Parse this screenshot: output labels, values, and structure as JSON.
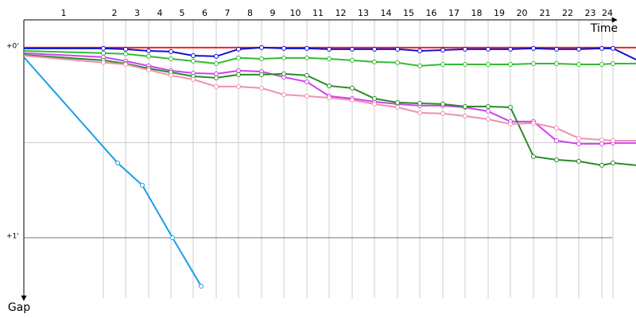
{
  "chart_data": {
    "type": "line",
    "laps": [
      "1",
      "2",
      "3",
      "4",
      "5",
      "6",
      "7",
      "8",
      "9",
      "10",
      "11",
      "12",
      "13",
      "14",
      "15",
      "16",
      "17",
      "18",
      "19",
      "20",
      "21",
      "22",
      "23",
      "24"
    ],
    "lap_ends": [
      100,
      128,
      157,
      185,
      213,
      242,
      270,
      299,
      327,
      356,
      384,
      413,
      441,
      470,
      498,
      527,
      555,
      584,
      612,
      641,
      670,
      698,
      727,
      741
    ],
    "x_label": "Time",
    "y_label": "Gap",
    "xlim": [
      0,
      770
    ],
    "ylim": [
      -0.146,
      1.318
    ],
    "yticks": [
      {
        "value": 0,
        "label": "+0'"
      },
      {
        "value": 1,
        "label": "+1'"
      }
    ],
    "minor_gridlines": [
      0.5
    ],
    "series": [
      {
        "color": "#ee2222",
        "x": [
          0,
          770
        ],
        "values": [
          0,
          0
        ]
      },
      {
        "color": "#1010cc",
        "x": [
          0,
          100,
          128,
          157,
          185,
          213,
          242,
          270,
          299,
          327,
          356,
          384,
          413,
          441,
          470,
          498,
          527,
          555,
          584,
          612,
          641,
          670,
          698,
          727,
          741,
          770
        ],
        "values": [
          0.004,
          0.004,
          0.008,
          0.017,
          0.021,
          0.042,
          0.046,
          0.008,
          0,
          0.004,
          0.004,
          0.008,
          0.008,
          0.008,
          0.008,
          0.017,
          0.013,
          0.008,
          0.008,
          0.008,
          0.004,
          0.008,
          0.008,
          0.004,
          0.004,
          0.063
        ]
      },
      {
        "color": "#33bb33",
        "x": [
          0,
          100,
          128,
          157,
          185,
          213,
          242,
          270,
          299,
          327,
          356,
          384,
          413,
          441,
          470,
          498,
          527,
          555,
          584,
          612,
          641,
          670,
          698,
          727,
          741,
          770
        ],
        "values": [
          0.017,
          0.029,
          0.033,
          0.046,
          0.059,
          0.071,
          0.084,
          0.054,
          0.059,
          0.054,
          0.054,
          0.059,
          0.067,
          0.075,
          0.079,
          0.096,
          0.088,
          0.088,
          0.088,
          0.088,
          0.084,
          0.084,
          0.088,
          0.088,
          0.084,
          0.084
        ]
      },
      {
        "color": "#cc44ee",
        "x": [
          0,
          100,
          128,
          157,
          185,
          213,
          242,
          270,
          299,
          327,
          356,
          384,
          413,
          441,
          470,
          498,
          527,
          555,
          584,
          612,
          641,
          670,
          698,
          727,
          741,
          770
        ],
        "values": [
          0.029,
          0.05,
          0.071,
          0.096,
          0.121,
          0.134,
          0.138,
          0.121,
          0.126,
          0.155,
          0.18,
          0.255,
          0.268,
          0.285,
          0.297,
          0.305,
          0.305,
          0.314,
          0.335,
          0.389,
          0.389,
          0.49,
          0.506,
          0.506,
          0.502,
          0.502
        ]
      },
      {
        "color": "#2a8a2a",
        "x": [
          0,
          100,
          128,
          157,
          185,
          213,
          242,
          270,
          299,
          327,
          356,
          384,
          413,
          441,
          470,
          498,
          527,
          555,
          584,
          612,
          641,
          670,
          698,
          727,
          741,
          770
        ],
        "values": [
          0.038,
          0.067,
          0.084,
          0.109,
          0.13,
          0.151,
          0.159,
          0.142,
          0.142,
          0.138,
          0.146,
          0.201,
          0.213,
          0.268,
          0.289,
          0.293,
          0.297,
          0.31,
          0.31,
          0.314,
          0.573,
          0.59,
          0.598,
          0.619,
          0.607,
          0.619
        ]
      },
      {
        "color": "#f090b0",
        "x": [
          0,
          100,
          128,
          157,
          185,
          213,
          242,
          270,
          299,
          327,
          356,
          384,
          413,
          441,
          470,
          498,
          527,
          555,
          584,
          612,
          641,
          670,
          698,
          727,
          741,
          770
        ],
        "values": [
          0.042,
          0.079,
          0.088,
          0.117,
          0.146,
          0.167,
          0.205,
          0.205,
          0.213,
          0.247,
          0.255,
          0.264,
          0.276,
          0.297,
          0.314,
          0.343,
          0.347,
          0.36,
          0.377,
          0.402,
          0.397,
          0.423,
          0.477,
          0.485,
          0.49,
          0.49
        ]
      },
      {
        "color": "#1a9ee8",
        "x": [
          0,
          118,
          149,
          187,
          223
        ],
        "values": [
          0.05,
          0.607,
          0.724,
          1.0,
          1.255
        ]
      }
    ]
  }
}
